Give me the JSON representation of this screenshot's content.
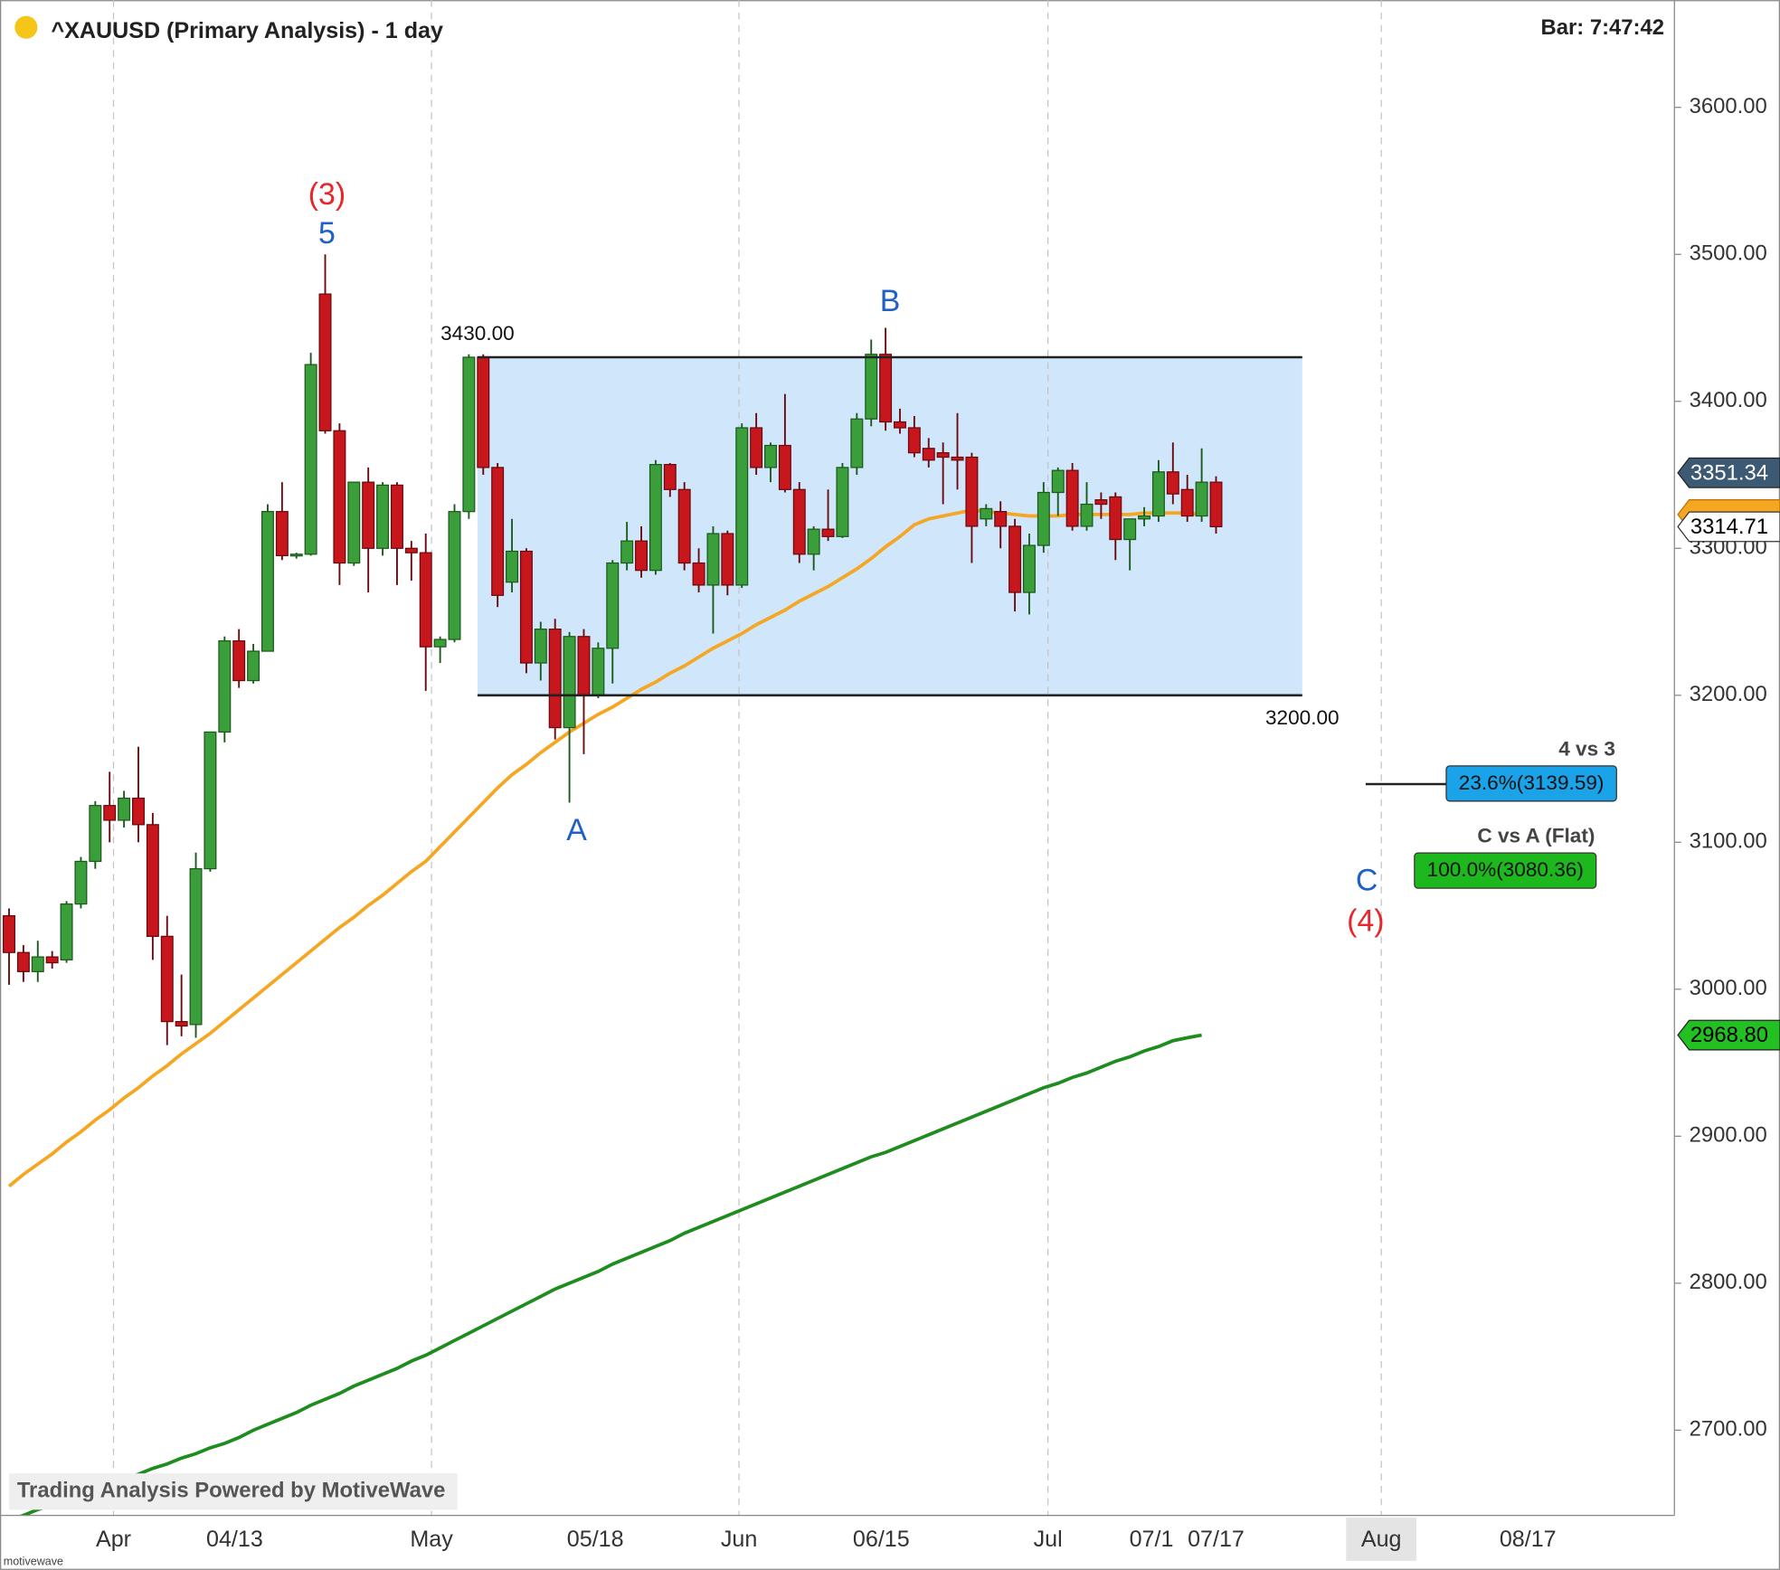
{
  "chart_data": {
    "type": "candlestick",
    "title": "^XAUUSD (Primary Analysis) - 1 day",
    "bar_timer": "Bar:  7:47:42",
    "watermark": "Trading Analysis Powered by MotiveWave",
    "footer": "motivewave",
    "open": [
      3050,
      3025,
      3012,
      3022,
      3020,
      3058,
      3087,
      3125,
      3115,
      3130,
      3112,
      3036,
      2978,
      2976,
      3082,
      3175,
      3237,
      3210,
      3230,
      3325,
      3295,
      3296,
      3473,
      3380,
      3290,
      3345,
      3300,
      3343,
      3300,
      3297,
      3233,
      3238,
      3325,
      3430,
      3355,
      3277,
      3298,
      3222,
      3245,
      3178,
      3240,
      3200,
      3232,
      3290,
      3305,
      3285,
      3357,
      3340,
      3290,
      3275,
      3310,
      3275,
      3382,
      3355,
      3370,
      3340,
      3296,
      3313,
      3308,
      3355,
      3388,
      3432,
      3386,
      3382,
      3368,
      3365,
      3362,
      3362,
      3320,
      3325,
      3315,
      3270,
      3302,
      3338,
      3353,
      3315,
      3333,
      3335,
      3306,
      3320,
      3322,
      3352,
      3340,
      3322,
      3345
    ],
    "high": [
      3055,
      3030,
      3033,
      3026,
      3060,
      3090,
      3128,
      3148,
      3135,
      3165,
      3120,
      3050,
      3010,
      3093,
      3175,
      3240,
      3245,
      3235,
      3330,
      3345,
      3297,
      3433,
      3500,
      3385,
      3345,
      3355,
      3345,
      3345,
      3305,
      3310,
      3240,
      3330,
      3432,
      3432,
      3358,
      3320,
      3300,
      3250,
      3252,
      3243,
      3245,
      3236,
      3292,
      3318,
      3315,
      3360,
      3358,
      3345,
      3300,
      3315,
      3312,
      3385,
      3392,
      3372,
      3405,
      3345,
      3315,
      3340,
      3358,
      3392,
      3442,
      3450,
      3395,
      3390,
      3375,
      3372,
      3392,
      3365,
      3330,
      3332,
      3320,
      3310,
      3345,
      3355,
      3358,
      3345,
      3338,
      3338,
      3320,
      3328,
      3360,
      3372,
      3350,
      3368,
      3349
    ],
    "low": [
      3003,
      3005,
      3005,
      3014,
      3018,
      3055,
      3082,
      3100,
      3110,
      3100,
      3020,
      2962,
      2968,
      2967,
      3080,
      3168,
      3205,
      3208,
      3230,
      3292,
      3293,
      3295,
      3378,
      3275,
      3288,
      3270,
      3295,
      3275,
      3278,
      3203,
      3222,
      3236,
      3320,
      3350,
      3260,
      3270,
      3215,
      3210,
      3170,
      3127,
      3160,
      3198,
      3208,
      3285,
      3280,
      3282,
      3335,
      3285,
      3270,
      3242,
      3268,
      3273,
      3350,
      3345,
      3338,
      3290,
      3285,
      3305,
      3307,
      3350,
      3383,
      3380,
      3378,
      3362,
      3355,
      3330,
      3340,
      3290,
      3315,
      3300,
      3257,
      3255,
      3297,
      3322,
      3312,
      3312,
      3320,
      3292,
      3285,
      3315,
      3318,
      3330,
      3318,
      3318,
      3310
    ],
    "close": [
      3025,
      3012,
      3022,
      3018,
      3058,
      3087,
      3125,
      3115,
      3130,
      3112,
      3036,
      2978,
      2975,
      3082,
      3175,
      3237,
      3210,
      3230,
      3325,
      3295,
      3296,
      3425,
      3380,
      3290,
      3345,
      3300,
      3343,
      3300,
      3297,
      3233,
      3238,
      3325,
      3430,
      3355,
      3268,
      3298,
      3222,
      3245,
      3178,
      3240,
      3200,
      3232,
      3290,
      3305,
      3285,
      3357,
      3340,
      3290,
      3275,
      3310,
      3275,
      3382,
      3355,
      3370,
      3340,
      3296,
      3313,
      3308,
      3355,
      3388,
      3432,
      3386,
      3382,
      3365,
      3360,
      3362,
      3360,
      3315,
      3327,
      3315,
      3270,
      3302,
      3338,
      3353,
      3315,
      3330,
      3330,
      3306,
      3320,
      3322,
      3352,
      3337,
      3322,
      3345,
      3314.71
    ],
    "up_color": "#3a9f3a",
    "down_color": "#c8161d",
    "lines": [
      {
        "color": "#f5a623",
        "values": [
          2866,
          2874,
          2881,
          2888,
          2896,
          2903,
          2911,
          2918,
          2926,
          2933,
          2941,
          2948,
          2956,
          2963,
          2970,
          2978,
          2986,
          2994,
          3002,
          3010,
          3018,
          3026,
          3034,
          3042,
          3049,
          3057,
          3064,
          3072,
          3080,
          3087,
          3097,
          3107,
          3117,
          3127,
          3137,
          3146,
          3153,
          3161,
          3168,
          3175,
          3181,
          3187,
          3192,
          3198,
          3204,
          3209,
          3215,
          3220,
          3226,
          3232,
          3237,
          3242,
          3248,
          3253,
          3258,
          3264,
          3269,
          3274,
          3280,
          3286,
          3293,
          3301,
          3308,
          3316,
          3320,
          3322,
          3324,
          3326,
          3325,
          3324,
          3323,
          3322,
          3322,
          3322,
          3323,
          3323,
          3323,
          3323,
          3323,
          3324,
          3324,
          3324,
          3324,
          3323,
          null
        ]
      },
      {
        "color": "#1e8c1e",
        "values": [
          2639,
          2642,
          2646,
          2649,
          2653,
          2656,
          2660,
          2663,
          2667,
          2670,
          2674,
          2677,
          2681,
          2684,
          2688,
          2691,
          2695,
          2700,
          2704,
          2708,
          2712,
          2717,
          2721,
          2725,
          2730,
          2734,
          2738,
          2742,
          2747,
          2751,
          2756,
          2761,
          2766,
          2771,
          2776,
          2781,
          2786,
          2791,
          2796,
          2800,
          2804,
          2808,
          2813,
          2817,
          2821,
          2825,
          2829,
          2834,
          2838,
          2842,
          2846,
          2850,
          2854,
          2858,
          2862,
          2866,
          2870,
          2874,
          2878,
          2882,
          2886,
          2889,
          2893,
          2897,
          2901,
          2905,
          2909,
          2913,
          2917,
          2921,
          2925,
          2929,
          2933,
          2936,
          2940,
          2943,
          2947,
          2951,
          2954,
          2958,
          2961,
          2965,
          2967,
          2968.8,
          null
        ]
      }
    ],
    "xlim": [
      -0.63,
      115.9
    ],
    "xticks": [
      {
        "value": 7.27,
        "label": "Apr"
      },
      {
        "value": 15.7,
        "label": "04/13"
      },
      {
        "value": 29.4,
        "label": "May"
      },
      {
        "value": 40.8,
        "label": "05/18"
      },
      {
        "value": 50.8,
        "label": "Jun"
      },
      {
        "value": 60.7,
        "label": "06/15"
      },
      {
        "value": 72.3,
        "label": "Jul"
      },
      {
        "value": 79.5,
        "label": "07/1"
      },
      {
        "value": 84,
        "label": "07/17"
      },
      {
        "value": 95.5,
        "label": "Aug"
      },
      {
        "value": 105.7,
        "label": "08/17"
      }
    ],
    "ylim": [
      2642,
      3673
    ],
    "yticks": [
      {
        "value": 2700,
        "label": "2700.00"
      },
      {
        "value": 2800,
        "label": "2800.00"
      },
      {
        "value": 2900,
        "label": "2900.00"
      },
      {
        "value": 3000,
        "label": "3000.00"
      },
      {
        "value": 3100,
        "label": "3100.00"
      },
      {
        "value": 3200,
        "label": "3200.00"
      },
      {
        "value": 3300,
        "label": "3300.00"
      },
      {
        "value": 3400,
        "label": "3400.00"
      },
      {
        "value": 3500,
        "label": "3500.00"
      },
      {
        "value": 3600,
        "label": "3600.00"
      }
    ],
    "range_box": {
      "top": 3430,
      "top_label": "3430.00",
      "bottom": 3200,
      "bottom_label": "3200.00",
      "color": "#cfe6fb"
    },
    "wave_labels": [
      {
        "text": "(3)",
        "color": "#e8262b"
      },
      {
        "text": "5",
        "color": "#1f5fc8"
      },
      {
        "text": "B",
        "color": "#1f5fc8"
      },
      {
        "text": "A",
        "color": "#1f5fc8"
      },
      {
        "text": "C",
        "color": "#1f5fc8"
      },
      {
        "text": "(4)",
        "color": "#e8262b"
      }
    ],
    "fib_levels": [
      {
        "title": "4 vs 3",
        "value": 3139.59,
        "label": "23.6%(3139.59)",
        "color": "#1aa3e8"
      },
      {
        "title": "C vs A (Flat)",
        "value": 3080.36,
        "label": "100.0%(3080.36)",
        "color": "#1db81d"
      }
    ],
    "price_tags": [
      {
        "value": 3351.34,
        "color": "#3d5a75",
        "text_color": "#ffffff"
      },
      {
        "value": 3314.71,
        "color": "#ffffff",
        "text_color": "#000000"
      },
      {
        "value": 2968.8,
        "label": "2968.80",
        "color": "#22c022",
        "text_color": "#000000"
      }
    ]
  }
}
